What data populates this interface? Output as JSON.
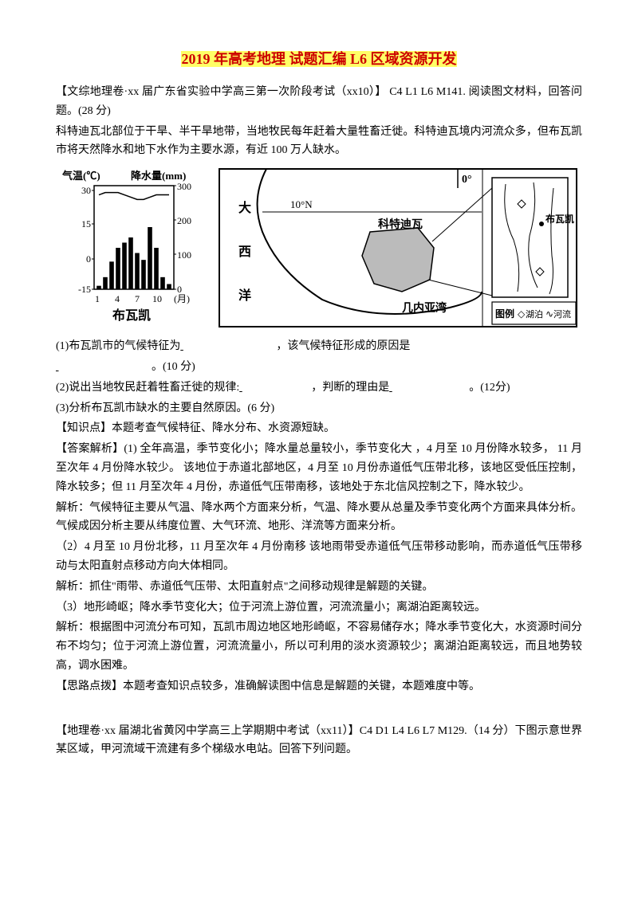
{
  "title": {
    "part1": "2019",
    "part2": " 年高考地理 试题汇编 L6 ",
    "part3": "区域资源开发"
  },
  "p1": "【文综地理卷·xx 届广东省实验中学高三第一次阶段考试（xx10）】 C4  L1  L6  M141. 阅读图文材料，回答问题。(28 分)",
  "p2": "科特迪瓦北部位于干旱、半干旱地带，当地牧民每年赶着大量牲畜迁徙。科特迪瓦境内河流众多，但布瓦凯市将天然降水和地下水作为主要水源，有近 100 万人缺水。",
  "q1_prefix": "(1)布瓦凯市的气候特征为",
  "q1_mid": "，该气候特征形成的原因是",
  "q1_suffix": "。(10 分)",
  "q2_prefix": "(2)说出当地牧民赶着牲畜迁徙的规律:",
  "q2_mid": "，判断的理由是",
  "q2_suffix": "。(12分)",
  "q3": "(3)分析布瓦凯市缺水的主要自然原因。(6 分)",
  "kp": "【知识点】本题考查气候特征、降水分布、水资源短缺。",
  "ans1": "【答案解析】(1) 全年高温，季节变化小；降水量总量较小，季节变化大  ，4 月至 10 月份降水较多， 11 月至次年 4 月份降水较少。   该地位于赤道北部地区，4 月至 10 月份赤道低气压带北移，该地区受低压控制，降水较多；但 11 月至次年 4 月份，赤道低气压带南移，该地处于东北信风控制之下，降水较少。",
  "ans1b": "解析：气候特征主要从气温、降水两个方面来分析，气温、降水要从总量及季节变化两个方面来具体分析。气候成因分析主要从纬度位置、大气环流、地形、洋流等方面来分析。",
  "ans2": "（2）4 月至 10 月份北移，11 月至次年 4 月份南移     该地雨带受赤道低气压带移动影响，而赤道低气压带移动与太阳直射点移动方向大体相同。",
  "ans2b": "解析：抓住\"雨带、赤道低气压带、太阳直射点\"之间移动规律是解题的关键。",
  "ans3": "（3）地形崎岖；降水季节变化大；位于河流上游位置，河流流量小；离湖泊距离较远。",
  "ans3b": "解析：根据图中河流分布可知，瓦凯市周边地区地形崎岖，不容易储存水；降水季节变化大，水资源时间分布不均匀；位于河流上游位置，河流流量小，所以可利用的淡水资源较少；离湖泊距离较远，而且地势较高，调水困难。",
  "tip": "【思路点拨】本题考查知识点较多，准确解读图中信息是解题的关键，本题难度中等。",
  "p3": "【地理卷·xx 届湖北省黄冈中学高三上学期期中考试（xx11）】C4   D1   L4   L6   L7  M129.（14 分）下图示意世界某区域，甲河流域干流建有多个梯级水电站。回答下列问题。",
  "climate": {
    "y1_label": "气温(℃)",
    "y2_label": "降水量(mm)",
    "temp_ticks": [
      "30",
      "15",
      "0",
      "-15"
    ],
    "precip_ticks": [
      "300",
      "200",
      "100",
      "0"
    ],
    "x_ticks": [
      "1",
      "4",
      "7",
      "10",
      "(月)"
    ],
    "name": "布瓦凯",
    "bar_color": "#000000",
    "line_color": "#000000",
    "bg": "#ffffff",
    "temp_values": [
      26,
      27,
      27,
      27,
      26,
      25,
      24,
      24,
      25,
      26,
      26,
      26
    ],
    "precip_values": [
      10,
      35,
      80,
      120,
      135,
      150,
      105,
      85,
      180,
      120,
      35,
      15
    ]
  },
  "map": {
    "labels": {
      "ocean1": "大",
      "ocean2": "西",
      "ocean3": "洋",
      "lat": "10°N",
      "lon": "0°",
      "country": "科特迪瓦",
      "gulf": "几内亚湾",
      "city": "布瓦凯",
      "legend": "图例",
      "lake_label": "湖泊",
      "lake_icon": "◇",
      "river_label": "河流",
      "river_icon": "∿"
    },
    "border_color": "#000000",
    "land_fill": "#ffffff"
  },
  "blanks": {
    "w_long": "120px",
    "w_med": "90px",
    "w_short": "80px"
  }
}
